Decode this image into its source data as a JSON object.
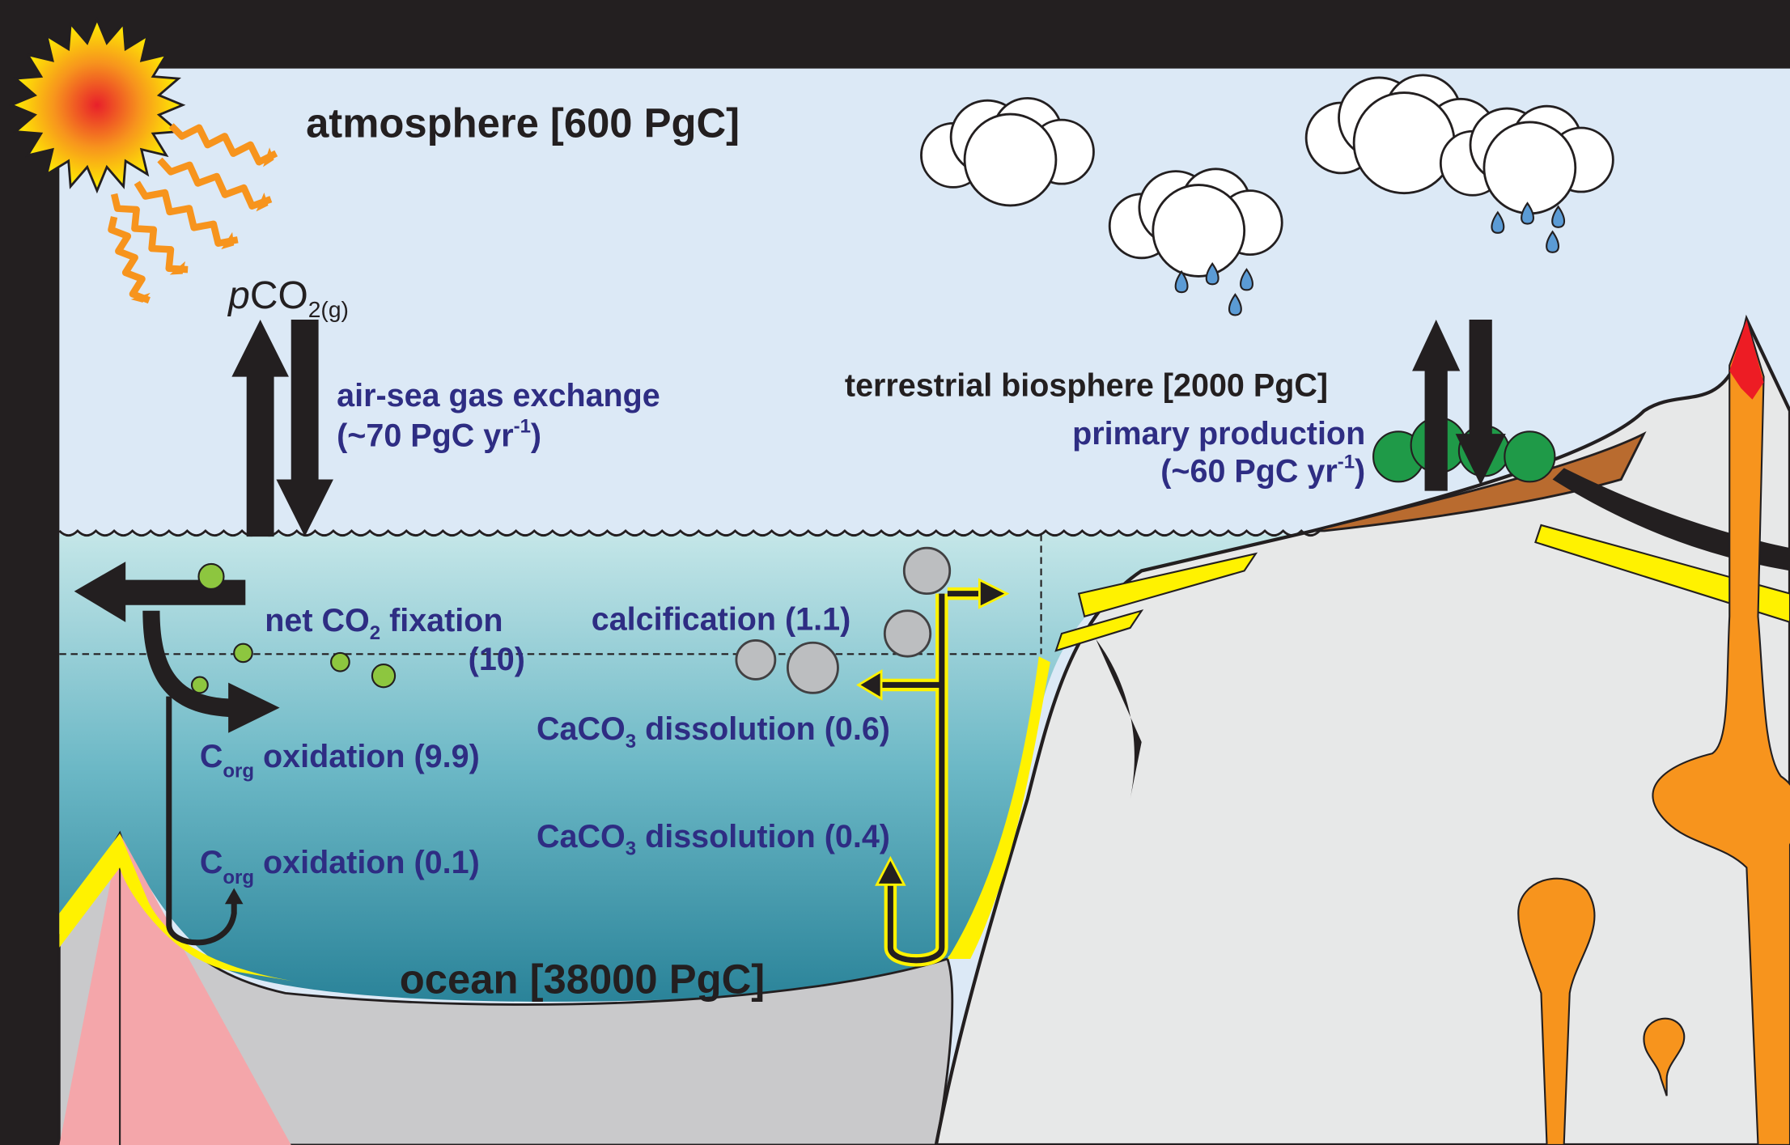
{
  "atmosphere": "atmosphere [600 PgC]",
  "ocean": "ocean [38000 PgC]",
  "terrestrial": "terrestrial biosphere [2000 PgC]",
  "pco2": {
    "italic": "p",
    "main": "CO",
    "sub": "2(g)"
  },
  "air_sea": {
    "title": "air-sea gas exchange",
    "flux": "(~70 PgC yr",
    "sup": "-1",
    "close": ")"
  },
  "primary": {
    "title": "primary production",
    "flux": "(~60 PgC yr",
    "sup": "-1",
    "close": ")"
  },
  "fixation": {
    "main": "net CO",
    "sub": "2",
    "rest": " fixation",
    "value": "(10)"
  },
  "calcification": "calcification (1.1)",
  "dissolution_upper": {
    "main": "CaCO",
    "sub": "3",
    "rest": " dissolution (0.6)"
  },
  "dissolution_lower": {
    "main": "CaCO",
    "sub": "3",
    "rest": " dissolution (0.4)"
  },
  "oxidation_upper": {
    "main": "C",
    "sub": "org",
    "rest": " oxidation (9.9)"
  },
  "oxidation_lower": {
    "main": "C",
    "sub": "org",
    "rest": " oxidation (0.1)"
  }
}
